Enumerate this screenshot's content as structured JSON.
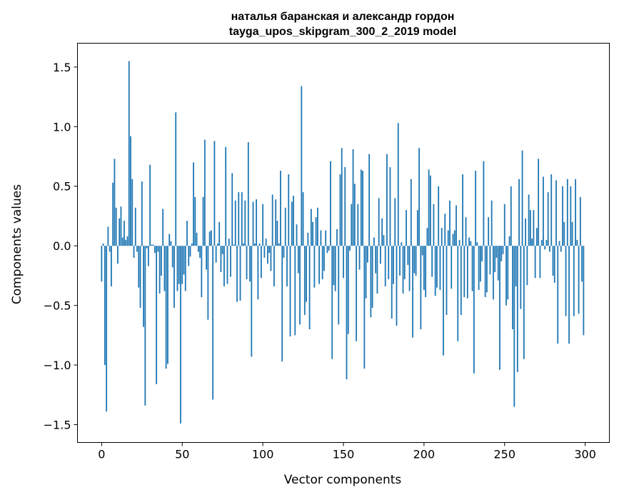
{
  "chart_data": {
    "type": "bar",
    "title_line1": "наталья баранская и александр гордон",
    "title_line2": "tayga_upos_skipgram_300_2_2019 model",
    "xlabel": "Vector components",
    "ylabel": "Components values",
    "xlim": [
      -15,
      315
    ],
    "ylim": [
      -1.65,
      1.7
    ],
    "xticks": [
      0,
      50,
      100,
      150,
      200,
      250,
      300
    ],
    "xtick_labels": [
      "0",
      "50",
      "100",
      "150",
      "200",
      "250",
      "300"
    ],
    "yticks": [
      -1.5,
      -1.0,
      -0.5,
      0.0,
      0.5,
      1.0,
      1.5
    ],
    "ytick_labels": [
      "−1.5",
      "−1.0",
      "−0.5",
      "0.0",
      "0.5",
      "1.0",
      "1.5"
    ],
    "grid": false,
    "bar_color": "#1f77b4",
    "values": [
      -0.3,
      0.02,
      -1.0,
      -1.39,
      0.16,
      -0.05,
      -0.34,
      0.53,
      0.73,
      0.32,
      -0.15,
      0.23,
      0.33,
      0.07,
      0.21,
      0.05,
      0.08,
      1.55,
      0.92,
      0.56,
      -0.1,
      0.32,
      -0.05,
      -0.35,
      -0.52,
      0.54,
      -0.68,
      -1.34,
      -0.02,
      -0.17,
      0.68,
      0.01,
      0.01,
      -0.06,
      -1.16,
      -0.05,
      -0.4,
      -0.25,
      0.31,
      -0.38,
      -1.03,
      -0.99,
      0.1,
      0.04,
      -0.18,
      -0.52,
      1.12,
      -0.38,
      -0.32,
      -1.49,
      -0.32,
      -0.24,
      -0.38,
      0.21,
      -0.17,
      -0.09,
      0.02,
      0.7,
      0.41,
      0.11,
      -0.05,
      -0.1,
      -0.43,
      0.41,
      0.89,
      -0.2,
      -0.62,
      0.12,
      0.13,
      -1.29,
      0.88,
      -0.14,
      0.02,
      0.2,
      -0.22,
      -0.07,
      -0.34,
      0.83,
      -0.32,
      0.06,
      -0.26,
      0.61,
      0.01,
      0.38,
      -0.47,
      0.45,
      -0.46,
      0.45,
      0.02,
      0.38,
      -0.28,
      0.87,
      -0.3,
      -0.93,
      0.37,
      0.02,
      0.39,
      -0.45,
      0.02,
      -0.27,
      0.35,
      -0.1,
      0.06,
      -0.15,
      -0.06,
      -0.21,
      0.43,
      -0.34,
      0.39,
      0.21,
      0.02,
      0.63,
      -0.97,
      -0.1,
      0.32,
      -0.34,
      0.6,
      -0.76,
      0.37,
      0.42,
      -0.75,
      0.18,
      -0.23,
      -0.66,
      1.34,
      0.45,
      -0.58,
      -0.47,
      0.11,
      -0.7,
      0.31,
      0.2,
      -0.35,
      0.24,
      0.32,
      -0.32,
      0.13,
      -0.28,
      -0.21,
      0.13,
      -0.06,
      -0.04,
      0.71,
      -0.95,
      -0.33,
      -0.38,
      0.14,
      -0.66,
      0.6,
      0.82,
      -0.27,
      0.66,
      -1.12,
      -0.74,
      -0.04,
      0.35,
      0.81,
      0.52,
      -0.8,
      0.35,
      -0.2,
      0.64,
      0.63,
      -1.03,
      -0.44,
      -0.14,
      0.77,
      -0.6,
      -0.52,
      0.07,
      -0.23,
      -0.4,
      0.4,
      -0.15,
      0.23,
      0.09,
      -0.34,
      0.77,
      -0.28,
      0.66,
      -0.61,
      -0.32,
      0.4,
      -0.67,
      1.03,
      -0.25,
      0.03,
      -0.4,
      -0.28,
      0.3,
      -0.16,
      -0.38,
      0.56,
      -0.77,
      -0.23,
      -0.25,
      0.3,
      0.82,
      -0.7,
      -0.08,
      -0.37,
      -0.43,
      0.15,
      0.64,
      0.59,
      -0.26,
      0.35,
      -0.42,
      -0.35,
      0.5,
      -0.37,
      0.15,
      -0.92,
      0.27,
      -0.58,
      0.13,
      0.38,
      -0.36,
      0.1,
      0.13,
      0.34,
      -0.8,
      0.05,
      -0.58,
      0.6,
      -0.43,
      0.24,
      -0.44,
      0.07,
      0.04,
      -0.38,
      -1.07,
      0.63,
      0.03,
      -0.37,
      -0.3,
      -0.13,
      0.71,
      -0.43,
      -0.39,
      0.24,
      -0.24,
      0.38,
      -0.45,
      -0.22,
      -0.1,
      -0.29,
      -1.04,
      -0.13,
      -0.07,
      0.35,
      -0.5,
      -0.45,
      0.08,
      0.5,
      -0.7,
      -1.35,
      -0.34,
      -1.06,
      0.56,
      -0.53,
      0.8,
      -0.95,
      0.23,
      -0.33,
      0.43,
      0.3,
      0.06,
      0.3,
      -0.27,
      0.15,
      0.73,
      -0.27,
      0.05,
      0.58,
      -0.03,
      0.05,
      0.45,
      -0.05,
      0.6,
      -0.25,
      -0.31,
      0.55,
      -0.82,
      0.04,
      -0.05,
      0.5,
      0.2,
      -0.59,
      0.56,
      -0.82,
      0.5,
      0.2,
      -0.59,
      0.56,
      0.05,
      -0.57,
      0.41,
      -0.3,
      -0.75
    ]
  }
}
